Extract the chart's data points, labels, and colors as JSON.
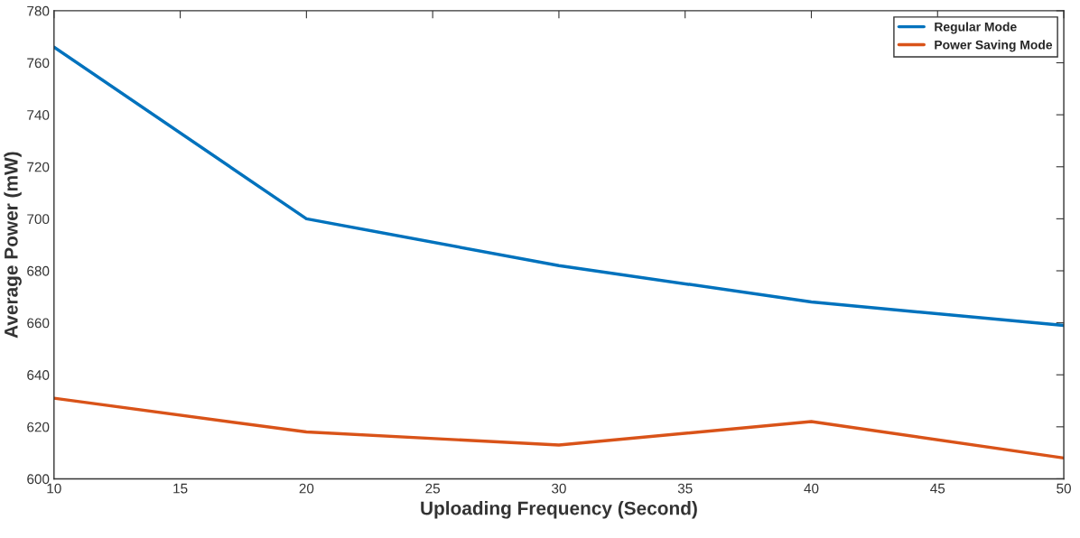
{
  "chart_data": {
    "type": "line",
    "xlabel": "Uploading Frequency (Second)",
    "ylabel": "Average Power (mW)",
    "x": [
      10,
      20,
      30,
      40,
      50
    ],
    "series": [
      {
        "name": "Regular Mode",
        "color": "#0072bd",
        "values": [
          766,
          700,
          682,
          668,
          659
        ]
      },
      {
        "name": "Power Saving Mode",
        "color": "#d95319",
        "values": [
          631,
          618,
          613,
          622,
          608
        ]
      }
    ],
    "xlim": [
      10,
      50
    ],
    "xticks": [
      10,
      15,
      20,
      25,
      30,
      35,
      40,
      45,
      50
    ],
    "ylim": [
      600,
      780
    ],
    "yticks": [
      600,
      620,
      640,
      660,
      680,
      700,
      720,
      740,
      760,
      780
    ],
    "grid": false,
    "legend": "top right",
    "line_style": "solid",
    "marker": "none"
  }
}
